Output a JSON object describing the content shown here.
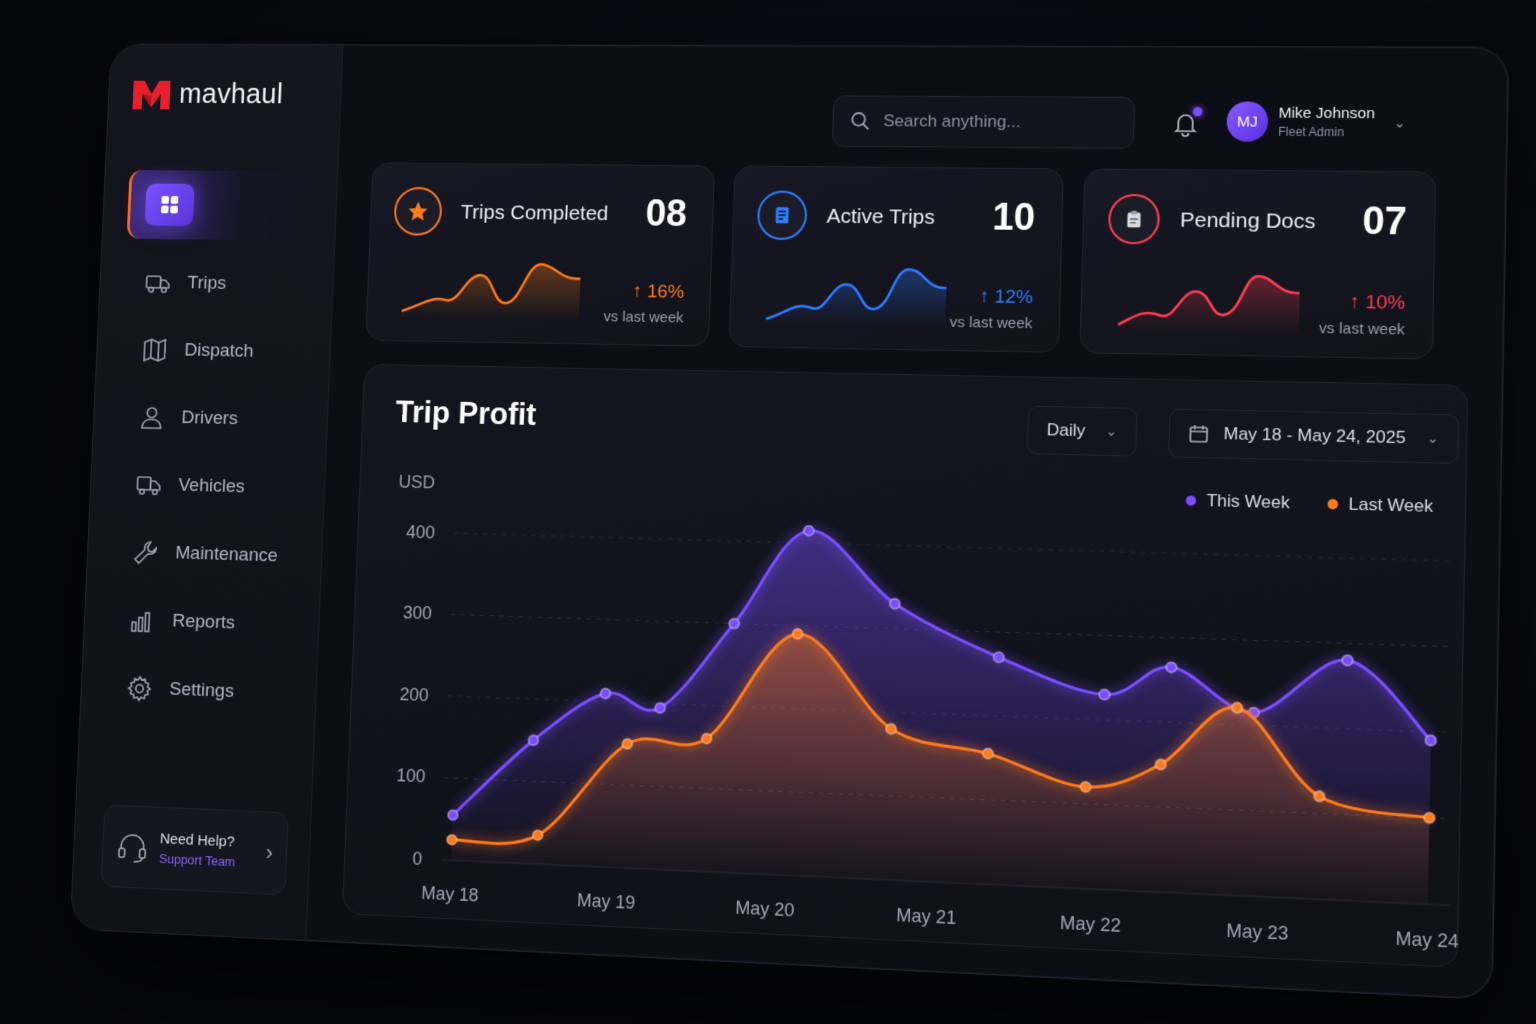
{
  "app": {
    "brand": "mavhaul"
  },
  "sidebar": {
    "items": [
      {
        "label": "Trips",
        "icon": "truck-icon"
      },
      {
        "label": "Dispatch",
        "icon": "map-icon"
      },
      {
        "label": "Drivers",
        "icon": "user-icon"
      },
      {
        "label": "Vehicles",
        "icon": "vehicle-icon"
      },
      {
        "label": "Maintenance",
        "icon": "wrench-icon"
      },
      {
        "label": "Reports",
        "icon": "bar-chart-icon"
      },
      {
        "label": "Settings",
        "icon": "gear-icon"
      }
    ],
    "help": {
      "title": "Need Help?",
      "link": "Support Team"
    }
  },
  "header": {
    "search_placeholder": "Search anything...",
    "user": {
      "initials": "MJ",
      "name": "Mike Johnson",
      "role": "Fleet Admin"
    }
  },
  "kpis": [
    {
      "label": "Trips Completed",
      "value": "08",
      "change": "16%",
      "compare": "vs last week",
      "color": "#ff7a1a"
    },
    {
      "label": "Active Trips",
      "value": "10",
      "change": "12%",
      "compare": "vs last week",
      "color": "#2f7bff"
    },
    {
      "label": "Pending Docs",
      "value": "07",
      "change": "10%",
      "compare": "vs last week",
      "color": "#ff3d4f"
    }
  ],
  "chart_controls": {
    "interval": "Daily",
    "date_range": "May 18 - May 24, 2025"
  },
  "chart_data": {
    "type": "area",
    "title": "Trip Profit",
    "ylabel": "USD",
    "ylim": [
      0,
      400
    ],
    "yticks": [
      0,
      100,
      200,
      300,
      400
    ],
    "categories": [
      "May 18",
      "May 19",
      "May 20",
      "May 21",
      "May 22",
      "May 23",
      "May 24"
    ],
    "legend_position": "top-right",
    "grid": true,
    "series": [
      {
        "name": "This Week",
        "color": "#7b4dff",
        "x": [
          0,
          0.5,
          0.95,
          1.3,
          1.75,
          2.2,
          2.75,
          3.4,
          4.05,
          4.45,
          4.95,
          5.5,
          6.0
        ],
        "y": [
          55,
          150,
          210,
          195,
          300,
          415,
          330,
          270,
          230,
          265,
          215,
          280,
          190
        ]
      },
      {
        "name": "Last Week",
        "color": "#ff7a1a",
        "x": [
          0,
          0.55,
          1.1,
          1.6,
          2.15,
          2.75,
          3.35,
          3.95,
          4.4,
          4.85,
          5.35,
          6.0
        ],
        "y": [
          25,
          35,
          150,
          160,
          290,
          180,
          155,
          120,
          150,
          220,
          120,
          100
        ]
      }
    ]
  }
}
